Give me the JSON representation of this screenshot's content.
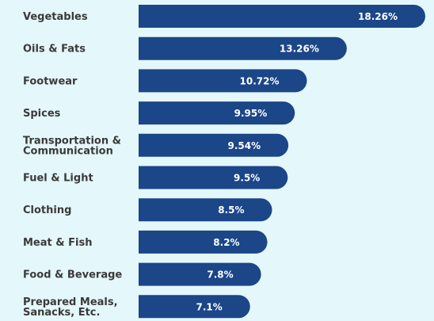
{
  "colors": {
    "background": "#e4f7fb",
    "bar": "#1b4688",
    "label_text": "#3a3a3a",
    "value_text": "#ffffff"
  },
  "chart_data": {
    "type": "bar",
    "orientation": "horizontal",
    "title": "",
    "xlabel": "",
    "ylabel": "",
    "xlim": [
      0,
      18.26
    ],
    "grid": false,
    "legend": "none",
    "categories": [
      "Vegetables",
      "Oils & Fats",
      "Footwear",
      "Spices",
      "Transportation & Communication",
      "Fuel & Light",
      "Clothing",
      "Meat & Fish",
      "Food & Beverage",
      "Prepared Meals, Sanacks, Etc."
    ],
    "category_lines": [
      [
        "Vegetables"
      ],
      [
        "Oils & Fats"
      ],
      [
        "Footwear"
      ],
      [
        "Spices"
      ],
      [
        "Transportation &",
        "Communication"
      ],
      [
        "Fuel & Light"
      ],
      [
        "Clothing"
      ],
      [
        "Meat & Fish"
      ],
      [
        "Food & Beverage"
      ],
      [
        "Prepared Meals,",
        "Sanacks, Etc."
      ]
    ],
    "values": [
      18.26,
      13.26,
      10.72,
      9.95,
      9.54,
      9.5,
      8.5,
      8.2,
      7.8,
      7.1
    ],
    "value_labels": [
      "18.26%",
      "13.26%",
      "10.72%",
      "9.95%",
      "9.54%",
      "9.5%",
      "8.5%",
      "8.2%",
      "7.8%",
      "7.1%"
    ]
  }
}
